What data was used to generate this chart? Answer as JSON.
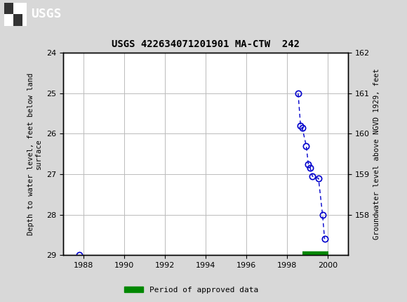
{
  "title": "USGS 422634071201901 MA-CTW  242",
  "ylabel_left": "Depth to water level, feet below land\nsurface",
  "ylabel_right": "Groundwater level above NGVD 1929, feet",
  "xlim": [
    1987.0,
    2001.0
  ],
  "ylim_left": [
    29.0,
    24.0
  ],
  "ylim_right": [
    157.0,
    162.0
  ],
  "yticks_left": [
    24.0,
    25.0,
    26.0,
    27.0,
    28.0,
    29.0
  ],
  "yticks_right": [
    158.0,
    159.0,
    160.0,
    161.0,
    162.0
  ],
  "xticks": [
    1988,
    1990,
    1992,
    1994,
    1996,
    1998,
    2000
  ],
  "segment1_x": [
    1987.8
  ],
  "segment1_y": [
    29.0
  ],
  "segment2_x": [
    1998.55,
    1998.67,
    1998.75,
    1998.95,
    1999.05,
    1999.15,
    1999.25,
    1999.55,
    1999.75,
    1999.85
  ],
  "segment2_y": [
    25.0,
    25.8,
    25.85,
    26.3,
    26.75,
    26.85,
    27.05,
    27.1,
    28.0,
    28.6
  ],
  "approved_bar_x_start": 1998.75,
  "approved_bar_x_end": 2000.05,
  "approved_bar_y": 29.0,
  "header_color": "#1b6b3a",
  "line_color": "#0000cc",
  "marker_color": "#0000cc",
  "approved_color": "#008800",
  "background_color": "#d8d8d8",
  "plot_background": "#ffffff",
  "grid_color": "#bbbbbb",
  "font_family": "monospace"
}
